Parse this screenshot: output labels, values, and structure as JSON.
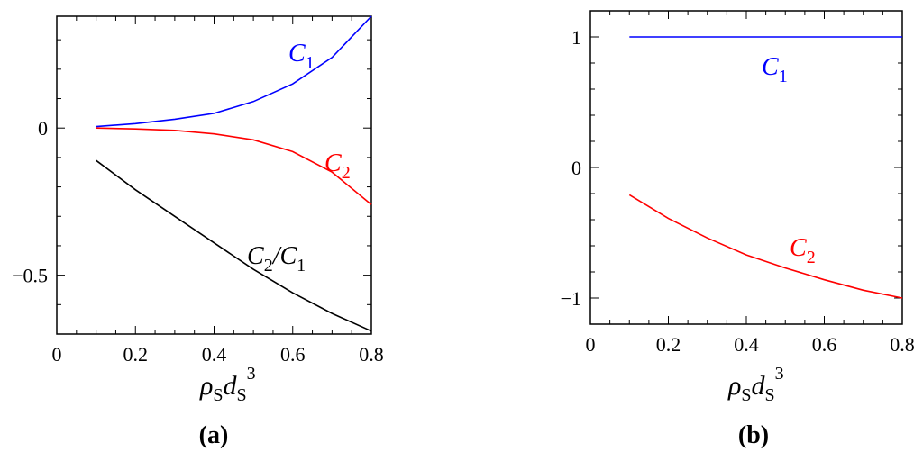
{
  "chart_data": [
    {
      "type": "line",
      "panel_label": "(a)",
      "xlabel": "ρSdS3",
      "x": [
        0.1,
        0.2,
        0.3,
        0.4,
        0.5,
        0.6,
        0.7,
        0.8
      ],
      "xlim": [
        0,
        0.8
      ],
      "ylim": [
        -0.7,
        0.38
      ],
      "xticks": [
        "0",
        "0.2",
        "0.4",
        "0.6",
        "0.8"
      ],
      "yticks": [
        "0",
        "−0.5"
      ],
      "series": [
        {
          "name": "C1",
          "color": "#0000ff",
          "values": [
            0.005,
            0.015,
            0.03,
            0.05,
            0.09,
            0.15,
            0.24,
            0.38
          ]
        },
        {
          "name": "C2",
          "color": "#ff0000",
          "values": [
            0.0,
            -0.003,
            -0.008,
            -0.02,
            -0.04,
            -0.08,
            -0.15,
            -0.26
          ]
        },
        {
          "name": "C2/C1",
          "color": "#000000",
          "values": [
            -0.11,
            -0.21,
            -0.3,
            -0.39,
            -0.48,
            -0.56,
            -0.63,
            -0.69
          ]
        }
      ]
    },
    {
      "type": "line",
      "panel_label": "(b)",
      "xlabel": "ρSdS3",
      "x": [
        0.1,
        0.2,
        0.3,
        0.4,
        0.5,
        0.6,
        0.7,
        0.8
      ],
      "xlim": [
        0,
        0.8
      ],
      "ylim": [
        -1.2,
        1.2
      ],
      "xticks": [
        "0",
        "0.2",
        "0.4",
        "0.6",
        "0.8"
      ],
      "yticks": [
        "1",
        "0",
        "−1"
      ],
      "series": [
        {
          "name": "C1",
          "color": "#0000ff",
          "values": [
            1,
            1,
            1,
            1,
            1,
            1,
            1,
            1
          ]
        },
        {
          "name": "C2",
          "color": "#ff0000",
          "values": [
            -0.21,
            -0.39,
            -0.54,
            -0.67,
            -0.77,
            -0.86,
            -0.94,
            -1.0
          ]
        }
      ]
    }
  ]
}
